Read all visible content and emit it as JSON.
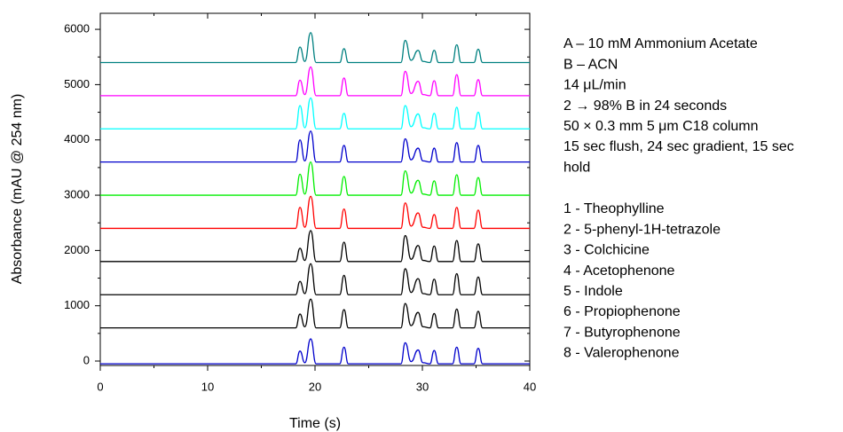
{
  "chart_data": {
    "type": "line",
    "x_label": "Time (s)",
    "y_label": "Absorbance (mAU @ 254 nm)",
    "xlim": [
      0,
      40
    ],
    "xticks": [
      0,
      10,
      20,
      30,
      40
    ],
    "xminorticks": [
      5,
      15,
      25,
      35
    ],
    "ylim": [
      -80,
      6290
    ],
    "yticks": [
      0,
      1000,
      2000,
      3000,
      4000,
      5000,
      6000
    ],
    "yminorticks": [
      500,
      1500,
      2500,
      3500,
      4500,
      5500
    ],
    "x": [
      0,
      18.2,
      18.6,
      19.05,
      19.6,
      20.1,
      22.3,
      22.7,
      23.1,
      28.0,
      28.4,
      28.95,
      29.6,
      30.05,
      30.7,
      31.1,
      31.5,
      32.8,
      33.2,
      33.6,
      34.8,
      35.2,
      35.6,
      40
    ],
    "series": [
      {
        "color": "#0000cc",
        "values": [
          -50,
          -50,
          180,
          -30,
          400,
          -50,
          -50,
          250,
          -50,
          -50,
          330,
          -10,
          200,
          -30,
          -50,
          190,
          -50,
          -50,
          250,
          -50,
          -50,
          230,
          -50,
          -50
        ]
      },
      {
        "color": "#000000",
        "values": [
          600,
          600,
          850,
          620,
          1120,
          600,
          600,
          930,
          600,
          600,
          1040,
          640,
          880,
          620,
          600,
          860,
          600,
          600,
          940,
          600,
          600,
          900,
          600,
          600
        ]
      },
      {
        "color": "#000000",
        "values": [
          1200,
          1200,
          1440,
          1220,
          1760,
          1200,
          1200,
          1550,
          1200,
          1200,
          1670,
          1240,
          1490,
          1220,
          1200,
          1480,
          1200,
          1200,
          1580,
          1200,
          1200,
          1520,
          1200,
          1200
        ]
      },
      {
        "color": "#000000",
        "values": [
          1800,
          1800,
          2040,
          1820,
          2360,
          1800,
          1800,
          2150,
          1800,
          1800,
          2270,
          1840,
          2090,
          1820,
          1800,
          2080,
          1800,
          1800,
          2180,
          1800,
          1800,
          2120,
          1800,
          1800
        ]
      },
      {
        "color": "#ff0000",
        "values": [
          2400,
          2400,
          2780,
          2420,
          2980,
          2400,
          2400,
          2750,
          2400,
          2400,
          2860,
          2440,
          2680,
          2420,
          2400,
          2650,
          2400,
          2400,
          2780,
          2400,
          2400,
          2730,
          2400,
          2400
        ]
      },
      {
        "color": "#00ee00",
        "values": [
          3000,
          3000,
          3380,
          3020,
          3600,
          3000,
          3000,
          3340,
          3000,
          3000,
          3440,
          3040,
          3270,
          3020,
          3000,
          3260,
          3000,
          3000,
          3370,
          3000,
          3000,
          3320,
          3000,
          3000
        ]
      },
      {
        "color": "#0000cc",
        "values": [
          3600,
          3600,
          4000,
          3620,
          4160,
          3600,
          3600,
          3900,
          3600,
          3600,
          4020,
          3640,
          3850,
          3620,
          3600,
          3850,
          3600,
          3600,
          3950,
          3600,
          3600,
          3900,
          3600,
          3600
        ]
      },
      {
        "color": "#00ffff",
        "values": [
          4200,
          4200,
          4620,
          4220,
          4760,
          4200,
          4200,
          4480,
          4200,
          4200,
          4620,
          4240,
          4470,
          4220,
          4200,
          4480,
          4200,
          4200,
          4590,
          4200,
          4200,
          4500,
          4200,
          4200
        ]
      },
      {
        "color": "#ff00ff",
        "values": [
          4800,
          4800,
          5080,
          4820,
          5320,
          4800,
          4800,
          5120,
          4800,
          4800,
          5240,
          4840,
          5060,
          4820,
          4800,
          5070,
          4800,
          4800,
          5180,
          4800,
          4800,
          5090,
          4800,
          4800
        ]
      },
      {
        "color": "#008080",
        "values": [
          5400,
          5400,
          5680,
          5420,
          5940,
          5400,
          5400,
          5650,
          5400,
          5400,
          5800,
          5440,
          5620,
          5420,
          5400,
          5620,
          5400,
          5400,
          5720,
          5400,
          5400,
          5640,
          5400,
          5400
        ]
      }
    ],
    "annotations": [
      "A – 10 mM Ammonium Acetate",
      "B – ACN",
      "14 μL/min",
      "2 → 98% B in 24 seconds",
      "50 × 0.3 mm 5 μm C18 column",
      "15 sec flush, 24 sec gradient, 15 sec",
      "hold"
    ],
    "compounds": [
      "1 - Theophylline",
      "2 - 5-phenyl-1H-tetrazole",
      "3 - Colchicine",
      "4 - Acetophenone",
      "5 - Indole",
      "6 - Propiophenone",
      "7 - Butyrophenone",
      "8 - Valerophenone"
    ]
  }
}
